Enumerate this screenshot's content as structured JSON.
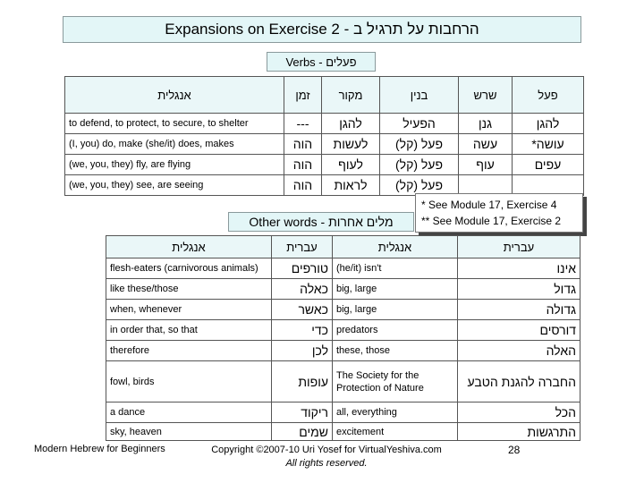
{
  "title": "Expansions on Exercise 2 - הרחבות על תרגיל ב",
  "verbs_label": "Verbs - פעלים",
  "verbs_table": {
    "headers": [
      "אנגלית",
      "זמן",
      "מקור",
      "בנין",
      "שרש",
      "פעל"
    ],
    "rows": [
      [
        "to defend, to protect, to secure, to shelter",
        "---",
        "להגן",
        "הפעיל",
        "גנן",
        "להגן"
      ],
      [
        "(I, you) do, make (she/it) does, makes",
        "הוה",
        "לעשות",
        "פעל (קל)",
        "עשה",
        "עושה*"
      ],
      [
        "(we, you, they) fly, are flying",
        "הוה",
        "לעוף",
        "פעל (קל)",
        "עוף",
        "עפים"
      ],
      [
        "(we, you, they) see, are seeing",
        "הוה",
        "לראות",
        "פעל (קל)",
        "",
        ""
      ]
    ]
  },
  "notes": [
    "* See Module 17, Exercise 4",
    "** See Module 17, Exercise 2"
  ],
  "other_label": "Other words - מלים אחרות",
  "other_table": {
    "headers": [
      "אנגלית",
      "עברית",
      "אנגלית",
      "עברית"
    ],
    "rows": [
      [
        "flesh-eaters (carnivorous animals)",
        "טורפים",
        "(he/it) isn't",
        "אינו"
      ],
      [
        "like these/those",
        "כאלה",
        "big, large",
        "גדול"
      ],
      [
        "when, whenever",
        "כאשר",
        "big, large",
        "גדולה"
      ],
      [
        "in order that, so that",
        "כדי",
        "predators",
        "דורסים"
      ],
      [
        "therefore",
        "לכן",
        "these, those",
        "האלה"
      ],
      [
        "fowl, birds",
        "עופות",
        "The Society for the Protection of Nature",
        "החברה להגנת הטבע"
      ],
      [
        "a dance",
        "ריקוד",
        "all, everything",
        "הכל"
      ],
      [
        "sky, heaven",
        "שמים",
        "excitement",
        "התרגשות"
      ]
    ]
  },
  "footer": {
    "left": "Modern Hebrew for Beginners",
    "copyright": "Copyright ©2007-10 Uri Yosef for VirtualYeshiva.com",
    "rights": "All rights reserved.",
    "page": "28"
  }
}
